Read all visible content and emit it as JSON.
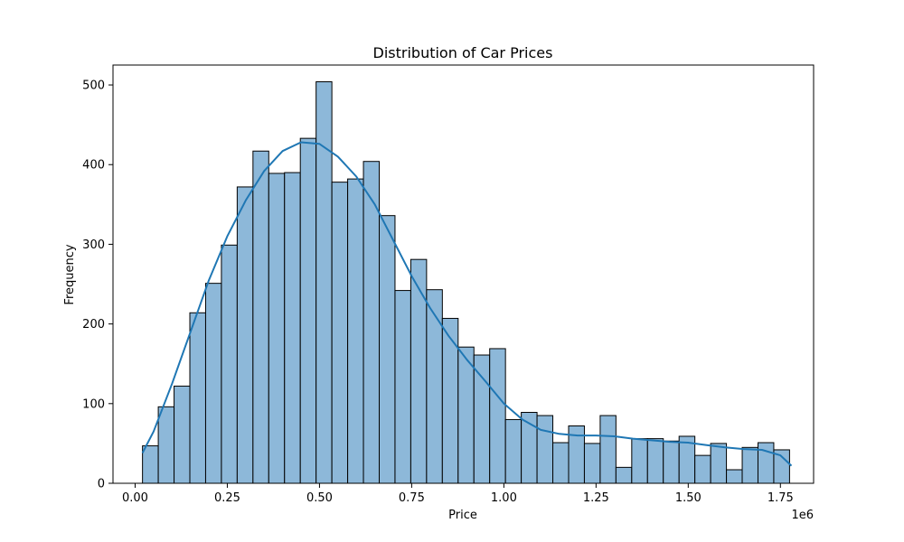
{
  "chart_data": {
    "type": "bar",
    "subtype": "histogram-with-kde",
    "title": "Distribution of Car Prices",
    "xlabel": "Price",
    "ylabel": "Frequency",
    "x_offset_label": "1e6",
    "xlim": [
      -0.06,
      1.84
    ],
    "ylim": [
      0,
      525
    ],
    "x_ticks": [
      0.0,
      0.25,
      0.5,
      0.75,
      1.0,
      1.25,
      1.5,
      1.75
    ],
    "x_tick_labels": [
      "0.00",
      "0.25",
      "0.50",
      "0.75",
      "1.00",
      "1.25",
      "1.50",
      "1.75"
    ],
    "y_ticks": [
      0,
      100,
      200,
      300,
      400,
      500
    ],
    "y_tick_labels": [
      "0",
      "100",
      "200",
      "300",
      "400",
      "500"
    ],
    "grid": false,
    "bin_start": 0.02,
    "bin_width": 0.0428,
    "values": [
      47,
      96,
      122,
      214,
      251,
      299,
      372,
      417,
      389,
      390,
      433,
      504,
      378,
      382,
      404,
      336,
      242,
      281,
      243,
      207,
      171,
      161,
      169,
      80,
      89,
      85,
      51,
      72,
      50,
      85,
      20,
      56,
      56,
      53,
      59,
      35,
      50,
      17,
      45,
      51,
      42
    ],
    "kde": {
      "x": [
        0.02,
        0.05,
        0.1,
        0.15,
        0.2,
        0.25,
        0.3,
        0.35,
        0.4,
        0.45,
        0.5,
        0.55,
        0.6,
        0.65,
        0.7,
        0.75,
        0.8,
        0.85,
        0.9,
        0.95,
        1.0,
        1.05,
        1.1,
        1.15,
        1.2,
        1.25,
        1.3,
        1.35,
        1.4,
        1.45,
        1.5,
        1.55,
        1.6,
        1.65,
        1.7,
        1.75,
        1.78
      ],
      "y": [
        38,
        65,
        125,
        190,
        255,
        310,
        355,
        392,
        417,
        428,
        426,
        410,
        385,
        350,
        305,
        260,
        220,
        185,
        155,
        128,
        100,
        80,
        67,
        62,
        60,
        60,
        59,
        56,
        54,
        52,
        51,
        48,
        45,
        43,
        42,
        35,
        22
      ]
    },
    "colors": {
      "bar_fill": "#8db8d9",
      "bar_edge": "#000000",
      "kde_line": "#1f77b4"
    }
  }
}
